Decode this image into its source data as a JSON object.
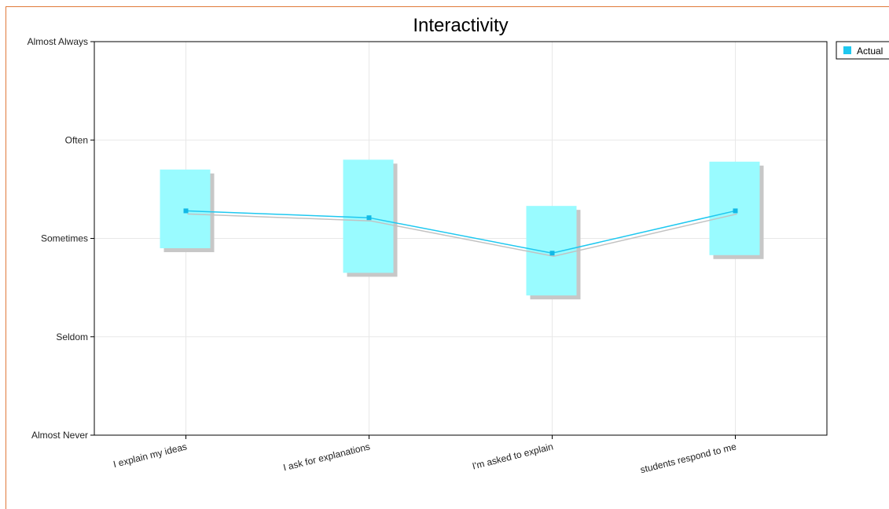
{
  "chart_data": {
    "type": "line",
    "title": "Interactivity",
    "categories": [
      "I explain my ideas",
      "I ask for explanations",
      "I'm asked to explain",
      "students respond to me"
    ],
    "y_scale_labels": [
      "Almost Never",
      "Seldom",
      "Sometimes",
      "Often",
      "Almost Always"
    ],
    "ylim": [
      1,
      5
    ],
    "series": [
      {
        "name": "Actual",
        "values": [
          3.28,
          3.21,
          2.85,
          3.28
        ],
        "range_low": [
          2.9,
          2.65,
          2.42,
          2.83
        ],
        "range_high": [
          3.7,
          3.8,
          3.33,
          3.78
        ]
      }
    ],
    "grid": true,
    "legend_position": "top-right",
    "colors": {
      "line": "#1ec8f0",
      "marker": "#12b9e6",
      "box": "#99fbff",
      "box_shadow": "#c7c7c7",
      "line_shadow": "#c2c2c2",
      "grid": "#e8e8e8",
      "axis": "#000000",
      "frame": "#e07a3a",
      "legend_swatch": "#1ec8f0"
    }
  }
}
